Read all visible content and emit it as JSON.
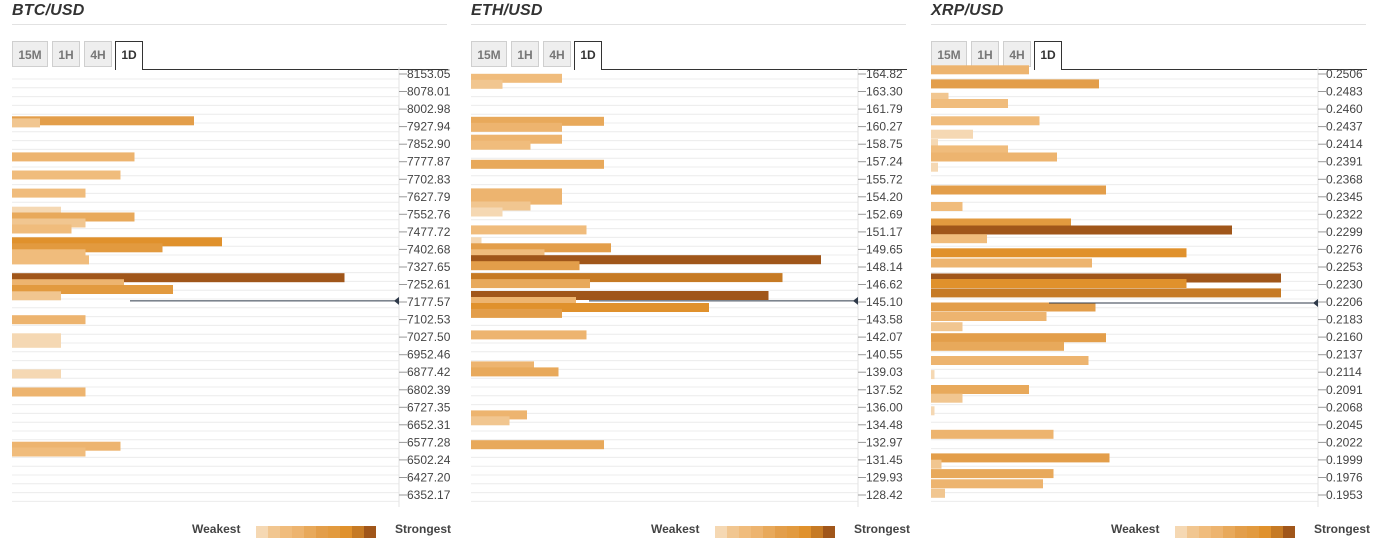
{
  "palette": [
    "#f5d8b3",
    "#f1c690",
    "#f0bc7c",
    "#edb46f",
    "#e8a95b",
    "#e39e4a",
    "#e29a3f",
    "#e0912c",
    "#c67a24",
    "#a0561a"
  ],
  "legend": {
    "weakest": "Weakest",
    "strongest": "Strongest"
  },
  "panels": [
    {
      "title": "BTC/USD",
      "tabs": [
        "15M",
        "1H",
        "4H",
        "1D"
      ],
      "active_tab": "1D",
      "chart_data": {
        "type": "bar",
        "orientation": "horizontal",
        "levels": [
          "8153.05",
          "8078.01",
          "8002.98",
          "7927.94",
          "7852.90",
          "7777.87",
          "7702.83",
          "7627.79",
          "7552.76",
          "7477.72",
          "7402.68",
          "7327.65",
          "7252.61",
          "7177.57",
          "7102.53",
          "7027.50",
          "6952.46",
          "6877.42",
          "6802.39",
          "6727.35",
          "6652.31",
          "6577.28",
          "6502.24",
          "6427.20",
          "6352.17"
        ],
        "range": [
          8165,
          6340
        ],
        "current_price": 7195,
        "max_value": 100,
        "bars": [
          {
            "price": 7942,
            "value": 52,
            "tone": 5
          },
          {
            "price": 7933,
            "value": 8,
            "tone": 1
          },
          {
            "price": 7792,
            "value": 35,
            "tone": 3
          },
          {
            "price": 7717,
            "value": 31,
            "tone": 2
          },
          {
            "price": 7642,
            "value": 21,
            "tone": 2
          },
          {
            "price": 7567,
            "value": 14,
            "tone": 0
          },
          {
            "price": 7543,
            "value": 35,
            "tone": 4
          },
          {
            "price": 7518,
            "value": 21,
            "tone": 1
          },
          {
            "price": 7493,
            "value": 17,
            "tone": 2
          },
          {
            "price": 7440,
            "value": 60,
            "tone": 7
          },
          {
            "price": 7415,
            "value": 43,
            "tone": 6
          },
          {
            "price": 7390,
            "value": 21,
            "tone": 2
          },
          {
            "price": 7365,
            "value": 22,
            "tone": 2
          },
          {
            "price": 7291,
            "value": 95,
            "tone": 9
          },
          {
            "price": 7266,
            "value": 32,
            "tone": 3
          },
          {
            "price": 7242,
            "value": 46,
            "tone": 6
          },
          {
            "price": 7216,
            "value": 14,
            "tone": 1
          },
          {
            "price": 7117,
            "value": 21,
            "tone": 3
          },
          {
            "price": 7042,
            "value": 14,
            "tone": 0
          },
          {
            "price": 7019,
            "value": 14,
            "tone": 0
          },
          {
            "price": 6892,
            "value": 14,
            "tone": 0
          },
          {
            "price": 6817,
            "value": 21,
            "tone": 3
          },
          {
            "price": 6592,
            "value": 31,
            "tone": 3
          },
          {
            "price": 6568,
            "value": 21,
            "tone": 2
          }
        ]
      }
    },
    {
      "title": "ETH/USD",
      "tabs": [
        "15M",
        "1H",
        "4H",
        "1D"
      ],
      "active_tab": "1D",
      "chart_data": {
        "type": "bar",
        "orientation": "horizontal",
        "levels": [
          "164.82",
          "163.30",
          "161.79",
          "160.27",
          "158.75",
          "157.24",
          "155.72",
          "154.20",
          "152.69",
          "151.17",
          "149.65",
          "148.14",
          "146.62",
          "145.10",
          "143.58",
          "142.07",
          "140.55",
          "139.03",
          "137.52",
          "136.00",
          "134.48",
          "132.97",
          "131.45",
          "129.93",
          "128.42"
        ],
        "range": [
          165.05,
          128.18
        ],
        "current_price": 145.45,
        "max_value": 100,
        "bars": [
          {
            "price": 164.1,
            "value": 26,
            "tone": 2
          },
          {
            "price": 163.6,
            "value": 9,
            "tone": 1
          },
          {
            "price": 160.5,
            "value": 38,
            "tone": 4
          },
          {
            "price": 160.0,
            "value": 26,
            "tone": 3
          },
          {
            "price": 159.0,
            "value": 26,
            "tone": 3
          },
          {
            "price": 158.5,
            "value": 17,
            "tone": 2
          },
          {
            "price": 156.9,
            "value": 38,
            "tone": 4
          },
          {
            "price": 154.5,
            "value": 26,
            "tone": 3
          },
          {
            "price": 153.9,
            "value": 26,
            "tone": 3
          },
          {
            "price": 153.4,
            "value": 17,
            "tone": 1
          },
          {
            "price": 152.9,
            "value": 9,
            "tone": 0
          },
          {
            "price": 151.4,
            "value": 33,
            "tone": 2
          },
          {
            "price": 150.4,
            "value": 3,
            "tone": 0
          },
          {
            "price": 149.9,
            "value": 40,
            "tone": 5
          },
          {
            "price": 149.4,
            "value": 21,
            "tone": 2
          },
          {
            "price": 148.9,
            "value": 100,
            "tone": 9
          },
          {
            "price": 148.4,
            "value": 31,
            "tone": 5
          },
          {
            "price": 147.4,
            "value": 89,
            "tone": 8
          },
          {
            "price": 146.9,
            "value": 34,
            "tone": 4
          },
          {
            "price": 145.9,
            "value": 85,
            "tone": 9
          },
          {
            "price": 145.4,
            "value": 30,
            "tone": 3
          },
          {
            "price": 144.9,
            "value": 68,
            "tone": 7
          },
          {
            "price": 144.4,
            "value": 26,
            "tone": 5
          },
          {
            "price": 142.6,
            "value": 33,
            "tone": 3
          },
          {
            "price": 140.0,
            "value": 18,
            "tone": 3
          },
          {
            "price": 139.5,
            "value": 25,
            "tone": 4
          },
          {
            "price": 135.9,
            "value": 16,
            "tone": 3
          },
          {
            "price": 135.4,
            "value": 11,
            "tone": 1
          },
          {
            "price": 133.4,
            "value": 38,
            "tone": 4
          }
        ]
      }
    },
    {
      "title": "XRP/USD",
      "tabs": [
        "15M",
        "1H",
        "4H",
        "1D"
      ],
      "active_tab": "1D",
      "chart_data": {
        "type": "bar",
        "orientation": "horizontal",
        "levels": [
          "0.2506",
          "0.2483",
          "0.2460",
          "0.2437",
          "0.2414",
          "0.2391",
          "0.2368",
          "0.2345",
          "0.2322",
          "0.2299",
          "0.2276",
          "0.2253",
          "0.2230",
          "0.2206",
          "0.2183",
          "0.2160",
          "0.2137",
          "0.2114",
          "0.2091",
          "0.2068",
          "0.2045",
          "0.2022",
          "0.1999",
          "0.1976",
          "0.1953"
        ],
        "range": [
          0.25095,
          0.19495
        ],
        "current_price": 0.22092,
        "max_value": 100,
        "bars": [
          {
            "price": 0.2506,
            "value": 28,
            "tone": 3
          },
          {
            "price": 0.2488,
            "value": 48,
            "tone": 5
          },
          {
            "price": 0.2471,
            "value": 5,
            "tone": 1
          },
          {
            "price": 0.2463,
            "value": 22,
            "tone": 2
          },
          {
            "price": 0.2441,
            "value": 31,
            "tone": 2
          },
          {
            "price": 0.2424,
            "value": 12,
            "tone": 0
          },
          {
            "price": 0.2412,
            "value": 2,
            "tone": 0
          },
          {
            "price": 0.2404,
            "value": 22,
            "tone": 2
          },
          {
            "price": 0.2395,
            "value": 36,
            "tone": 3
          },
          {
            "price": 0.2382,
            "value": 2,
            "tone": 0
          },
          {
            "price": 0.2353,
            "value": 50,
            "tone": 5
          },
          {
            "price": 0.2332,
            "value": 9,
            "tone": 2
          },
          {
            "price": 0.2311,
            "value": 40,
            "tone": 6
          },
          {
            "price": 0.2302,
            "value": 86,
            "tone": 9
          },
          {
            "price": 0.2291,
            "value": 16,
            "tone": 2
          },
          {
            "price": 0.2273,
            "value": 73,
            "tone": 7
          },
          {
            "price": 0.226,
            "value": 46,
            "tone": 3
          },
          {
            "price": 0.2241,
            "value": 100,
            "tone": 9
          },
          {
            "price": 0.2234,
            "value": 73,
            "tone": 7
          },
          {
            "price": 0.2222,
            "value": 100,
            "tone": 8
          },
          {
            "price": 0.2204,
            "value": 47,
            "tone": 5
          },
          {
            "price": 0.2192,
            "value": 33,
            "tone": 3
          },
          {
            "price": 0.2179,
            "value": 9,
            "tone": 1
          },
          {
            "price": 0.2165,
            "value": 50,
            "tone": 5
          },
          {
            "price": 0.2154,
            "value": 38,
            "tone": 4
          },
          {
            "price": 0.2136,
            "value": 45,
            "tone": 3
          },
          {
            "price": 0.2118,
            "value": 1,
            "tone": 0
          },
          {
            "price": 0.2099,
            "value": 28,
            "tone": 4
          },
          {
            "price": 0.2088,
            "value": 9,
            "tone": 1
          },
          {
            "price": 0.2072,
            "value": 1,
            "tone": 0
          },
          {
            "price": 0.2042,
            "value": 35,
            "tone": 3
          },
          {
            "price": 0.2012,
            "value": 51,
            "tone": 5
          },
          {
            "price": 0.2004,
            "value": 3,
            "tone": 1
          },
          {
            "price": 0.1992,
            "value": 35,
            "tone": 4
          },
          {
            "price": 0.1979,
            "value": 32,
            "tone": 3
          },
          {
            "price": 0.1967,
            "value": 4,
            "tone": 1
          }
        ]
      }
    }
  ]
}
